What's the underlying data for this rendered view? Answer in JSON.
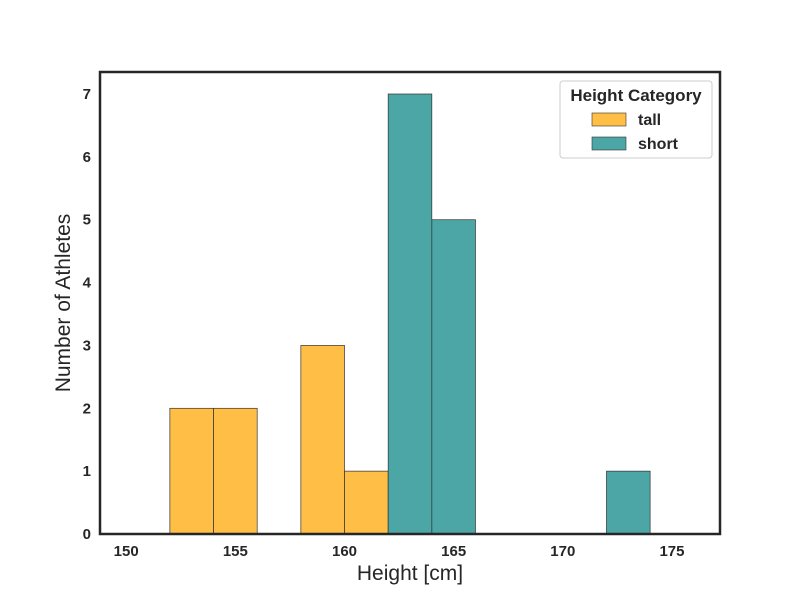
{
  "chart_data": {
    "type": "bar",
    "xlabel": "Height [cm]",
    "ylabel": "Number of Athletes",
    "xlim": [
      148.8,
      177.2
    ],
    "ylim": [
      0,
      7.35
    ],
    "x_ticks": [
      150,
      155,
      160,
      165,
      170,
      175
    ],
    "y_ticks": [
      0,
      1,
      2,
      3,
      4,
      5,
      6,
      7
    ],
    "grid": false,
    "legend": {
      "title": "Height Category",
      "placement": "top-right"
    },
    "series": [
      {
        "name": "tall",
        "color": "#ffb732",
        "bins": [
          {
            "x0": 152,
            "x1": 154,
            "count": 2
          },
          {
            "x0": 154,
            "x1": 156,
            "count": 2
          },
          {
            "x0": 158,
            "x1": 160,
            "count": 3
          },
          {
            "x0": 160,
            "x1": 162,
            "count": 1
          }
        ]
      },
      {
        "name": "short",
        "color": "#3a9c9c",
        "bins": [
          {
            "x0": 162,
            "x1": 164,
            "count": 7
          },
          {
            "x0": 164,
            "x1": 166,
            "count": 5
          },
          {
            "x0": 172,
            "x1": 174,
            "count": 1
          }
        ]
      }
    ]
  }
}
